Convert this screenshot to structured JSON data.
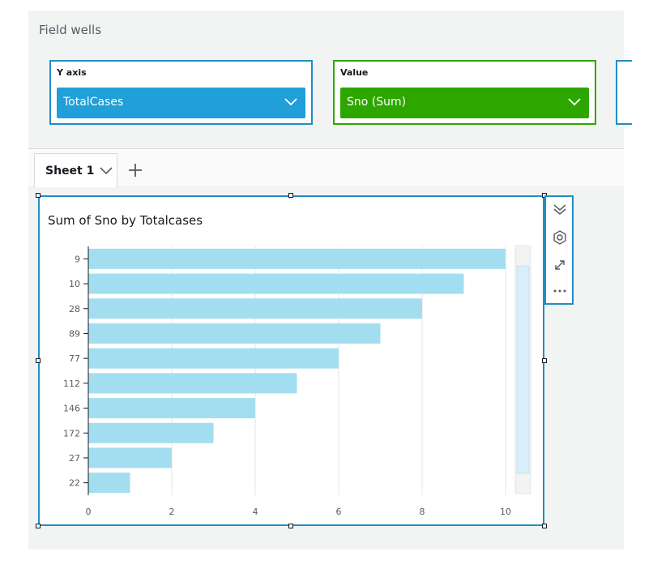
{
  "field_wells": {
    "title": "Field wells",
    "y_axis": {
      "label": "Y axis",
      "field": "TotalCases"
    },
    "value": {
      "label": "Value",
      "field": "Sno (Sum)"
    }
  },
  "sheet_tab": {
    "name": "Sheet 1"
  },
  "visual": {
    "title": "Sum of Sno by Totalcases"
  },
  "colors": {
    "bar": "#a3def0",
    "accent": "#1f8ec6",
    "value_green": "#2ea600",
    "y_pill": "#209fd9"
  },
  "chart_data": {
    "type": "bar",
    "orientation": "horizontal",
    "categories": [
      "9",
      "10",
      "28",
      "89",
      "77",
      "112",
      "146",
      "172",
      "27",
      "22"
    ],
    "values": [
      10,
      9,
      8,
      7,
      6,
      5,
      4,
      3,
      2,
      1
    ],
    "xlim": [
      0,
      10
    ],
    "xticks": [
      "0",
      "2",
      "4",
      "6",
      "8",
      "10"
    ],
    "grid": true
  }
}
